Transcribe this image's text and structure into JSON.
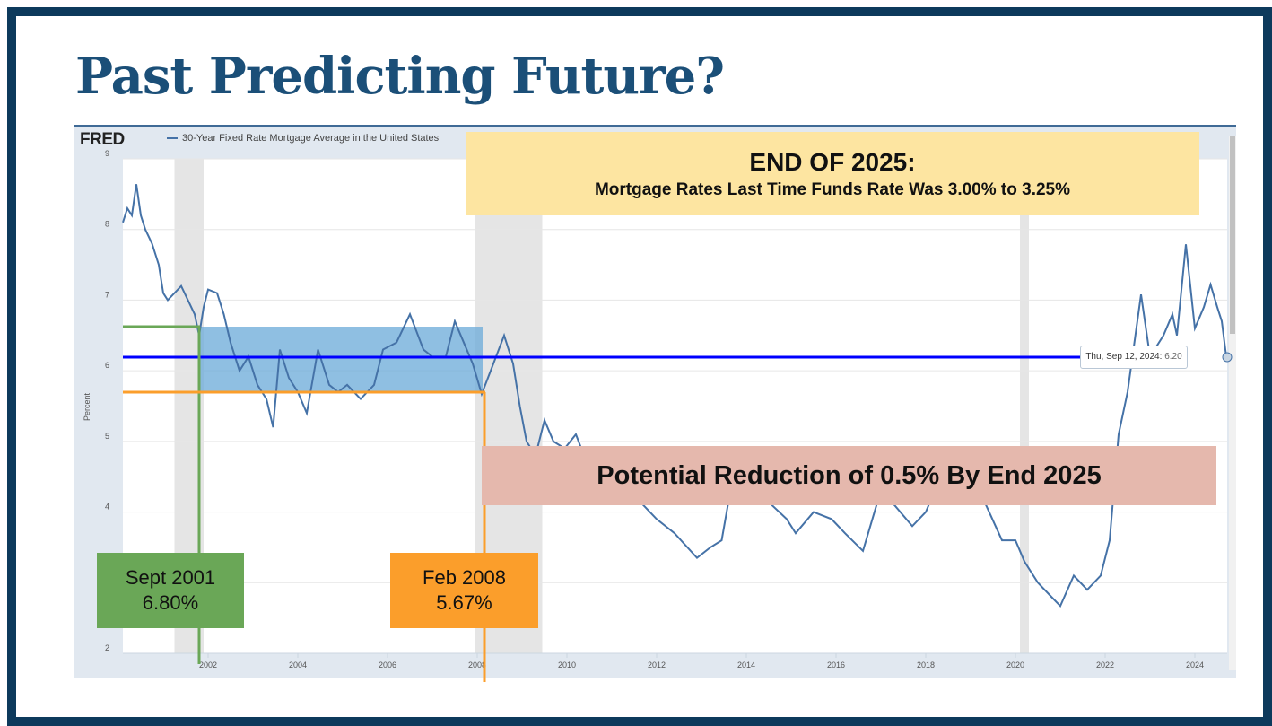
{
  "slide": {
    "title": "Past Predicting Future?"
  },
  "fred": {
    "logo": "FRED",
    "series_label": "30-Year Fixed Rate Mortgage Average in the United States"
  },
  "tooltip": {
    "date": "Thu, Sep 12, 2024:",
    "value": "6.20"
  },
  "callouts": {
    "top_heading": "END OF 2025:",
    "top_sub": "Mortgage Rates Last Time Funds Rate Was 3.00% to 3.25%",
    "reduction": "Potential Reduction of 0.5% By End 2025",
    "sept_date": "Sept 2001",
    "sept_rate": "6.80%",
    "feb_date": "Feb 2008",
    "feb_rate": "5.67%"
  },
  "colors": {
    "series": "#4572a7",
    "current_line": "#0000ff",
    "green": "#6aa757",
    "orange": "#fb9e2b",
    "band": "#6aaad8",
    "recession": "#e5e5e5"
  },
  "chart_data": {
    "type": "line",
    "title": "30-Year Fixed Rate Mortgage Average in the United States",
    "ylabel": "Percent",
    "xlabel": "",
    "ylim": [
      2,
      9
    ],
    "xlim": [
      2000.0,
      2024.75
    ],
    "yticks": [
      "2",
      "3",
      "4",
      "5",
      "6",
      "7",
      "8",
      "9"
    ],
    "xticks": [
      "2002",
      "2004",
      "2006",
      "2008",
      "2010",
      "2012",
      "2014",
      "2016",
      "2018",
      "2020",
      "2022",
      "2024"
    ],
    "grid": true,
    "recessions": [
      [
        2001.25,
        2001.9
      ],
      [
        2007.95,
        2009.45
      ],
      [
        2020.1,
        2020.3
      ]
    ],
    "annotations": {
      "current_rate": 6.2,
      "band": [
        5.67,
        6.6
      ],
      "band_years": [
        2001.8,
        2008.12
      ]
    },
    "series": [
      {
        "name": "30-Year Fixed Rate Mortgage Average in the United States",
        "points": [
          [
            2000.1,
            8.1
          ],
          [
            2000.2,
            8.3
          ],
          [
            2000.3,
            8.2
          ],
          [
            2000.4,
            8.64
          ],
          [
            2000.5,
            8.2
          ],
          [
            2000.6,
            8.0
          ],
          [
            2000.75,
            7.8
          ],
          [
            2000.9,
            7.5
          ],
          [
            2001.0,
            7.1
          ],
          [
            2001.1,
            7.0
          ],
          [
            2001.25,
            7.1
          ],
          [
            2001.4,
            7.2
          ],
          [
            2001.55,
            7.0
          ],
          [
            2001.7,
            6.8
          ],
          [
            2001.8,
            6.5
          ],
          [
            2001.9,
            6.9
          ],
          [
            2002.0,
            7.15
          ],
          [
            2002.2,
            7.1
          ],
          [
            2002.35,
            6.8
          ],
          [
            2002.5,
            6.4
          ],
          [
            2002.7,
            6.0
          ],
          [
            2002.9,
            6.2
          ],
          [
            2003.1,
            5.8
          ],
          [
            2003.3,
            5.6
          ],
          [
            2003.45,
            5.2
          ],
          [
            2003.6,
            6.3
          ],
          [
            2003.8,
            5.9
          ],
          [
            2004.0,
            5.7
          ],
          [
            2004.2,
            5.4
          ],
          [
            2004.45,
            6.3
          ],
          [
            2004.7,
            5.8
          ],
          [
            2004.9,
            5.7
          ],
          [
            2005.1,
            5.8
          ],
          [
            2005.4,
            5.6
          ],
          [
            2005.7,
            5.8
          ],
          [
            2005.9,
            6.3
          ],
          [
            2006.2,
            6.4
          ],
          [
            2006.5,
            6.8
          ],
          [
            2006.8,
            6.3
          ],
          [
            2007.0,
            6.2
          ],
          [
            2007.3,
            6.2
          ],
          [
            2007.5,
            6.7
          ],
          [
            2007.7,
            6.4
          ],
          [
            2007.9,
            6.1
          ],
          [
            2008.1,
            5.67
          ],
          [
            2008.3,
            6.0
          ],
          [
            2008.6,
            6.5
          ],
          [
            2008.8,
            6.1
          ],
          [
            2008.95,
            5.5
          ],
          [
            2009.1,
            5.0
          ],
          [
            2009.3,
            4.8
          ],
          [
            2009.5,
            5.3
          ],
          [
            2009.7,
            5.0
          ],
          [
            2009.95,
            4.9
          ],
          [
            2010.2,
            5.1
          ],
          [
            2010.5,
            4.6
          ],
          [
            2010.8,
            4.2
          ],
          [
            2011.1,
            4.8
          ],
          [
            2011.4,
            4.6
          ],
          [
            2011.7,
            4.1
          ],
          [
            2012.0,
            3.9
          ],
          [
            2012.4,
            3.7
          ],
          [
            2012.9,
            3.35
          ],
          [
            2013.2,
            3.5
          ],
          [
            2013.45,
            3.6
          ],
          [
            2013.7,
            4.5
          ],
          [
            2014.0,
            4.5
          ],
          [
            2014.4,
            4.2
          ],
          [
            2014.9,
            3.9
          ],
          [
            2015.1,
            3.7
          ],
          [
            2015.5,
            4.0
          ],
          [
            2015.9,
            3.9
          ],
          [
            2016.2,
            3.7
          ],
          [
            2016.6,
            3.45
          ],
          [
            2016.95,
            4.2
          ],
          [
            2017.3,
            4.1
          ],
          [
            2017.7,
            3.8
          ],
          [
            2018.0,
            4.0
          ],
          [
            2018.4,
            4.6
          ],
          [
            2018.9,
            4.9
          ],
          [
            2019.2,
            4.3
          ],
          [
            2019.7,
            3.6
          ],
          [
            2020.0,
            3.6
          ],
          [
            2020.2,
            3.3
          ],
          [
            2020.5,
            3.0
          ],
          [
            2020.8,
            2.8
          ],
          [
            2021.0,
            2.67
          ],
          [
            2021.3,
            3.1
          ],
          [
            2021.6,
            2.9
          ],
          [
            2021.9,
            3.1
          ],
          [
            2022.1,
            3.6
          ],
          [
            2022.3,
            5.1
          ],
          [
            2022.5,
            5.7
          ],
          [
            2022.8,
            7.08
          ],
          [
            2023.0,
            6.2
          ],
          [
            2023.3,
            6.5
          ],
          [
            2023.5,
            6.8
          ],
          [
            2023.6,
            6.5
          ],
          [
            2023.8,
            7.79
          ],
          [
            2024.0,
            6.6
          ],
          [
            2024.2,
            6.9
          ],
          [
            2024.35,
            7.22
          ],
          [
            2024.5,
            6.9
          ],
          [
            2024.6,
            6.7
          ],
          [
            2024.7,
            6.2
          ]
        ]
      }
    ]
  }
}
